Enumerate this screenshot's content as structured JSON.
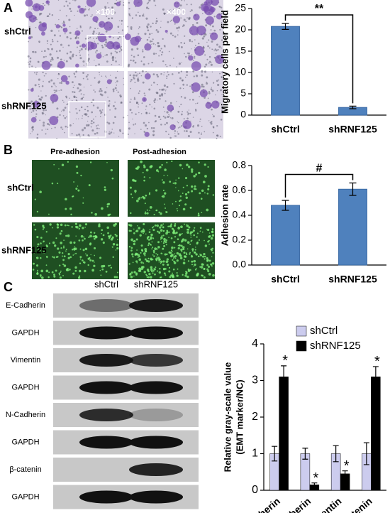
{
  "figure": {
    "panel_labels": [
      "A",
      "B",
      "C"
    ],
    "migration_images": {
      "rows": [
        "shCtrl",
        "shRNF125"
      ],
      "magnifications": [
        "×100",
        "×400"
      ]
    },
    "adhesion_images": {
      "columns": [
        "Pre-adhesion",
        "Post-adhesion"
      ],
      "rows": [
        "shCtrl",
        "shRNF125"
      ]
    },
    "western_blot": {
      "columns": [
        "shCtrl",
        "shRNF125"
      ],
      "rows": [
        "E-Cadherin",
        "GAPDH",
        "Vimentin",
        "GAPDH",
        "N-Cadherin",
        "GAPDH",
        "β-catenin",
        "GAPDH"
      ]
    }
  },
  "chart_data": [
    {
      "type": "bar",
      "y_label": "Migratory cells per field",
      "categories": [
        "shCtrl",
        "shRNF125"
      ],
      "values": [
        20.8,
        1.8
      ],
      "errors": [
        0.7,
        0.3
      ],
      "color": "#4f81bd",
      "ylim": [
        0,
        25
      ],
      "yticks": [
        0,
        5,
        10,
        15,
        20,
        25
      ],
      "significance": "**"
    },
    {
      "type": "bar",
      "y_label": "Adhesion rate",
      "categories": [
        "shCtrl",
        "shRNF125"
      ],
      "values": [
        0.48,
        0.61
      ],
      "errors": [
        0.04,
        0.05
      ],
      "color": "#4f81bd",
      "ylim": [
        0,
        0.8
      ],
      "yticks": [
        {
          "value": 0,
          "label": "0.0"
        },
        0.2,
        0.4,
        0.6,
        0.8
      ],
      "significance": "#"
    },
    {
      "type": "bar",
      "y_label": [
        "Relative gray-scale value",
        "(EMT marker/NC)"
      ],
      "categories": [
        "E-cadherin",
        "N-cadherin",
        "Vimentin",
        "β-catenin"
      ],
      "series": [
        {
          "name": "shCtrl",
          "color": "#ccccee",
          "values": [
            1,
            1,
            1,
            1
          ],
          "errors": [
            0.2,
            0.15,
            0.22,
            0.3
          ]
        },
        {
          "name": "shRNF125",
          "color": "#000000",
          "values": [
            3.1,
            0.15,
            0.45,
            3.1
          ],
          "errors": [
            0.3,
            0.05,
            0.08,
            0.28
          ],
          "annotations": [
            "*",
            "*",
            "*",
            "*"
          ]
        }
      ],
      "ylim": [
        0,
        4
      ],
      "yticks": [
        0,
        1,
        2,
        3,
        4
      ],
      "legend": "top"
    }
  ]
}
